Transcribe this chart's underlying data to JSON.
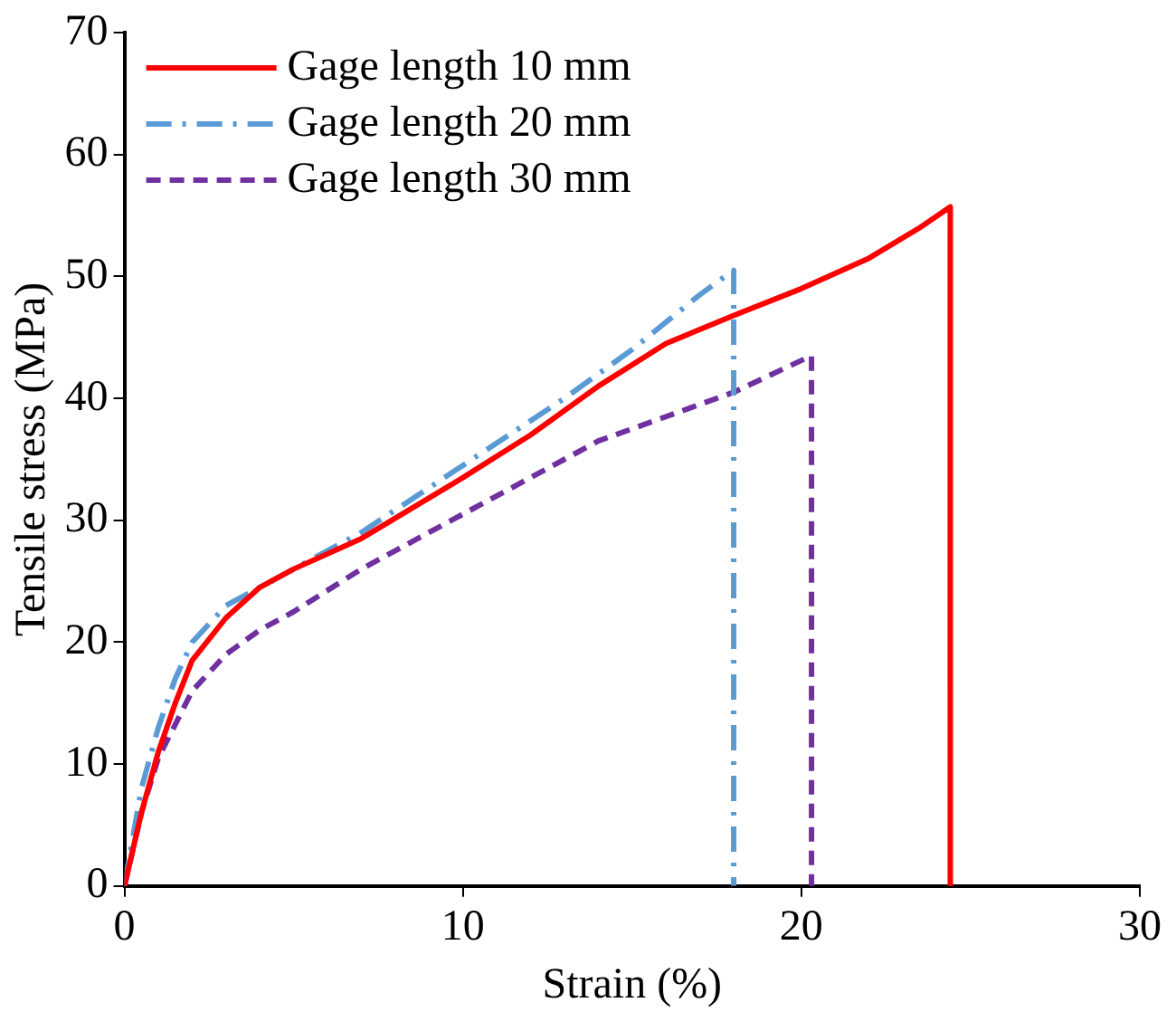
{
  "chart_data": {
    "type": "line",
    "xlabel": "Strain (%)",
    "ylabel": "Tensile stress (MPa)",
    "xlim": [
      0,
      30
    ],
    "xticks": [
      0,
      10,
      20,
      30
    ],
    "ylim": [
      0,
      70
    ],
    "yticks": [
      0,
      10,
      20,
      30,
      40,
      50,
      60,
      70
    ],
    "grid": false,
    "legend": "top left",
    "marker": "none",
    "series": [
      {
        "name": "Gage length 10 mm",
        "color": "#ff0000",
        "line_style": "solid",
        "x": [
          0,
          0.5,
          1,
          1.5,
          2,
          3,
          4,
          5,
          7,
          10,
          12,
          14,
          16,
          18,
          20,
          22,
          23.5,
          24.4,
          24.4
        ],
        "values": [
          0,
          6,
          11,
          15,
          18.5,
          22,
          24.5,
          26,
          28.5,
          33.5,
          37,
          41,
          44.5,
          46.8,
          49,
          51.5,
          54,
          55.7,
          0
        ]
      },
      {
        "name": "Gage length 20 mm",
        "color": "#5b9bd5",
        "line_style": "dashdot",
        "x": [
          0,
          0.5,
          1,
          1.5,
          2,
          3,
          4,
          5,
          7,
          10,
          13,
          15,
          17,
          18,
          18
        ],
        "values": [
          0,
          8,
          13,
          17,
          20,
          23,
          24.5,
          26,
          29,
          34.5,
          40,
          44,
          48.5,
          50.5,
          0
        ]
      },
      {
        "name": "Gage length 30 mm",
        "color": "#7030a0",
        "line_style": "dashed",
        "x": [
          0,
          0.5,
          1,
          2,
          3,
          4,
          5,
          7,
          10,
          12,
          14,
          16,
          18,
          20.3,
          20.3
        ],
        "values": [
          0,
          6,
          10.5,
          16,
          19,
          21,
          22.5,
          26,
          30.5,
          33.5,
          36.5,
          38.5,
          40.5,
          43.5,
          0
        ]
      }
    ]
  }
}
